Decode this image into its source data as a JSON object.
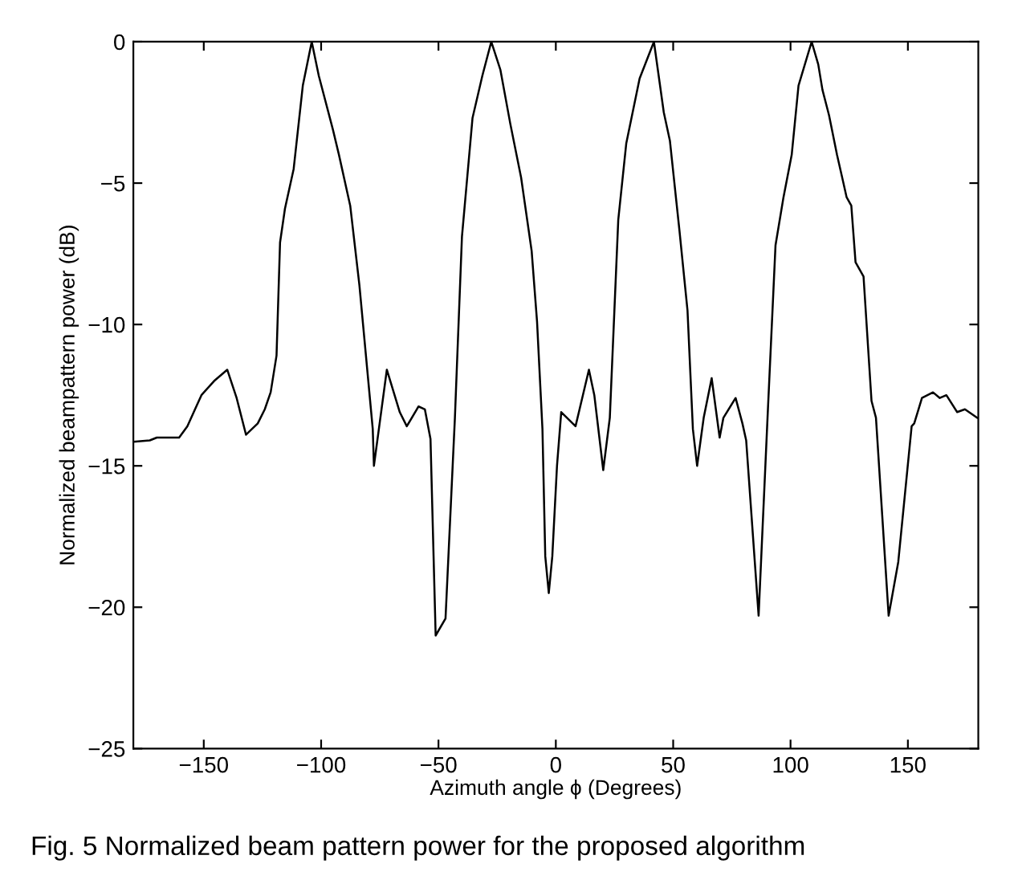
{
  "chart_data": {
    "type": "line",
    "xlabel": "Azimuth angle ϕ (Degrees)",
    "ylabel": "Normalized beampattern power (dB)",
    "annotations": [
      "Fig. 5 Normalized beam pattern power for the proposed algorithm"
    ],
    "xlim": [
      -180,
      180
    ],
    "xticks": [
      -150,
      -100,
      -50,
      0,
      50,
      100,
      150
    ],
    "ylim": [
      -25,
      0
    ],
    "yticks": [
      -25,
      -20,
      -15,
      -10,
      -5,
      0
    ],
    "grid": false,
    "legend": false,
    "marker": "none",
    "line_style": "solid",
    "series": [
      {
        "color": "#000000",
        "x": [
          -180,
          -173,
          -170,
          -160.5,
          -157,
          -151,
          -145.6,
          -140,
          -136,
          -132,
          -127,
          -124,
          -121.5,
          -119,
          -117.5,
          -115.4,
          -111.7,
          -107.8,
          -104,
          -101,
          -95,
          -92.4,
          -87.6,
          -83.7,
          -78,
          -77.5,
          -72,
          -66.5,
          -63.5,
          -58.5,
          -55.8,
          -53.4,
          -51.2,
          -47,
          -43,
          -40,
          -35.5,
          -31.3,
          -27.5,
          -23.6,
          -19.4,
          -14.8,
          -10.3,
          -8,
          -5.7,
          -4.5,
          -3,
          -1.5,
          0.5,
          2.3,
          8.4,
          14.1,
          16.4,
          20.2,
          23,
          26.6,
          30,
          35.7,
          41.8,
          46,
          48.6,
          52.7,
          56.1,
          58.4,
          60.2,
          63,
          66.4,
          69.8,
          71.4,
          76.6,
          79.5,
          81.1,
          86.4,
          90.2,
          93.6,
          97,
          100.5,
          103.4,
          109,
          111.8,
          113.6,
          116.4,
          119.8,
          122,
          123.9,
          125.9,
          127.7,
          131.1,
          134.5,
          136.4,
          141.8,
          145.9,
          151.6,
          152.7,
          156,
          160.7,
          163.6,
          166.4,
          171,
          174.3,
          179.5
        ],
        "values": [
          -14.15,
          -14.1,
          -14.0,
          -14.0,
          -13.6,
          -12.5,
          -12.0,
          -11.6,
          -12.6,
          -13.9,
          -13.5,
          -13.0,
          -12.4,
          -11.1,
          -7.1,
          -5.9,
          -4.5,
          -1.55,
          0,
          -1.2,
          -3.1,
          -4.0,
          -5.8,
          -8.6,
          -13.7,
          -15.0,
          -11.6,
          -13.1,
          -13.6,
          -12.9,
          -13.0,
          -14.05,
          -21.0,
          -20.4,
          -13.3,
          -6.9,
          -2.7,
          -1.2,
          0,
          -1.0,
          -2.9,
          -4.8,
          -7.4,
          -9.9,
          -13.7,
          -18.2,
          -19.5,
          -18.2,
          -15.0,
          -13.1,
          -13.6,
          -11.6,
          -12.5,
          -15.15,
          -13.3,
          -6.3,
          -3.6,
          -1.3,
          0,
          -2.5,
          -3.5,
          -6.7,
          -9.5,
          -13.7,
          -15.0,
          -13.3,
          -11.9,
          -14.0,
          -13.3,
          -12.6,
          -13.5,
          -14.1,
          -20.3,
          -13.3,
          -7.2,
          -5.5,
          -4.0,
          -1.55,
          0,
          -0.8,
          -1.7,
          -2.6,
          -4.0,
          -4.8,
          -5.5,
          -5.8,
          -7.8,
          -8.3,
          -12.7,
          -13.3,
          -20.3,
          -18.4,
          -13.6,
          -13.5,
          -12.6,
          -12.4,
          -12.6,
          -12.5,
          -13.1,
          -13.0,
          -13.3
        ]
      }
    ]
  }
}
